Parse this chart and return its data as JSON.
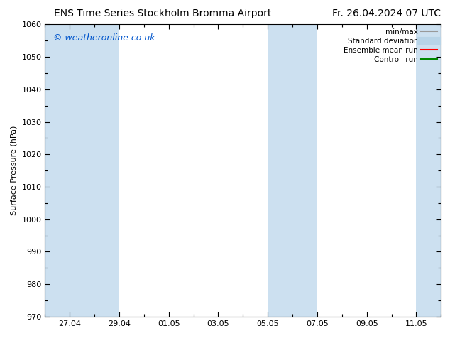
{
  "title_left": "ENS Time Series Stockholm Bromma Airport",
  "title_right": "Fr. 26.04.2024 07 UTC",
  "ylabel": "Surface Pressure (hPa)",
  "ylim": [
    970,
    1060
  ],
  "yticks": [
    970,
    980,
    990,
    1000,
    1010,
    1020,
    1030,
    1040,
    1050,
    1060
  ],
  "xtick_labels": [
    "27.04",
    "29.04",
    "01.05",
    "03.05",
    "05.05",
    "07.05",
    "09.05",
    "11.05"
  ],
  "xtick_positions": [
    1,
    3,
    5,
    7,
    9,
    11,
    13,
    15
  ],
  "xlim": [
    0,
    16
  ],
  "watermark": "© weatheronline.co.uk",
  "watermark_color": "#0055cc",
  "background_color": "#ffffff",
  "shaded_bands_x": [
    [
      0,
      3,
      "#cce0f0"
    ],
    [
      9,
      11,
      "#cce0f0"
    ],
    [
      15,
      16,
      "#cce0f0"
    ]
  ],
  "legend_entries": [
    {
      "label": "min/max",
      "color": "#999999",
      "linewidth": 1.5,
      "linestyle": "-"
    },
    {
      "label": "Standard deviation",
      "color": "#b8d4e8",
      "linewidth": 8,
      "linestyle": "-"
    },
    {
      "label": "Ensemble mean run",
      "color": "#ff0000",
      "linewidth": 1.5,
      "linestyle": "-"
    },
    {
      "label": "Controll run",
      "color": "#008800",
      "linewidth": 1.5,
      "linestyle": "-"
    }
  ],
  "title_fontsize": 10,
  "axis_tick_fontsize": 8,
  "ylabel_fontsize": 8,
  "watermark_fontsize": 9
}
